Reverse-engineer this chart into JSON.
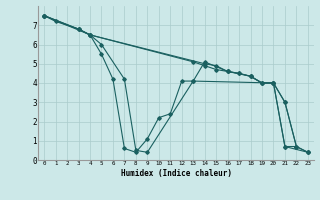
{
  "title": "",
  "xlabel": "Humidex (Indice chaleur)",
  "bg_color": "#cce8e8",
  "grid_color": "#aacccc",
  "line_color": "#1a6060",
  "xlim": [
    -0.5,
    23.5
  ],
  "ylim": [
    0,
    8
  ],
  "xticks": [
    0,
    1,
    2,
    3,
    4,
    5,
    6,
    7,
    8,
    9,
    10,
    11,
    12,
    13,
    14,
    15,
    16,
    17,
    18,
    19,
    20,
    21,
    22,
    23
  ],
  "yticks": [
    0,
    1,
    2,
    3,
    4,
    5,
    6,
    7
  ],
  "series": [
    {
      "x": [
        0,
        1,
        3,
        4,
        13,
        14,
        15,
        16,
        17,
        18,
        19,
        20,
        21,
        22,
        23
      ],
      "y": [
        7.5,
        7.2,
        6.8,
        6.5,
        5.1,
        4.9,
        4.7,
        4.6,
        4.5,
        4.35,
        4.0,
        4.0,
        3.0,
        0.7,
        0.4
      ]
    },
    {
      "x": [
        0,
        3,
        4,
        5,
        6,
        7,
        8,
        9,
        10,
        11,
        12,
        13,
        20,
        21,
        22
      ],
      "y": [
        7.5,
        6.8,
        6.5,
        5.5,
        4.2,
        0.6,
        0.4,
        1.1,
        2.2,
        2.4,
        4.1,
        4.1,
        4.0,
        0.7,
        0.7
      ]
    },
    {
      "x": [
        0,
        4,
        5,
        7,
        8,
        9,
        13,
        14,
        16,
        18,
        19,
        20,
        21,
        23
      ],
      "y": [
        7.5,
        6.5,
        6.0,
        4.2,
        0.5,
        0.4,
        4.1,
        5.1,
        4.6,
        4.35,
        4.0,
        4.0,
        0.7,
        0.4
      ]
    },
    {
      "x": [
        0,
        3,
        4,
        14,
        15,
        16,
        17,
        18,
        19,
        20,
        21,
        22,
        23
      ],
      "y": [
        7.5,
        6.8,
        6.5,
        5.0,
        4.9,
        4.6,
        4.5,
        4.35,
        4.0,
        4.0,
        3.0,
        0.7,
        0.4
      ]
    }
  ]
}
